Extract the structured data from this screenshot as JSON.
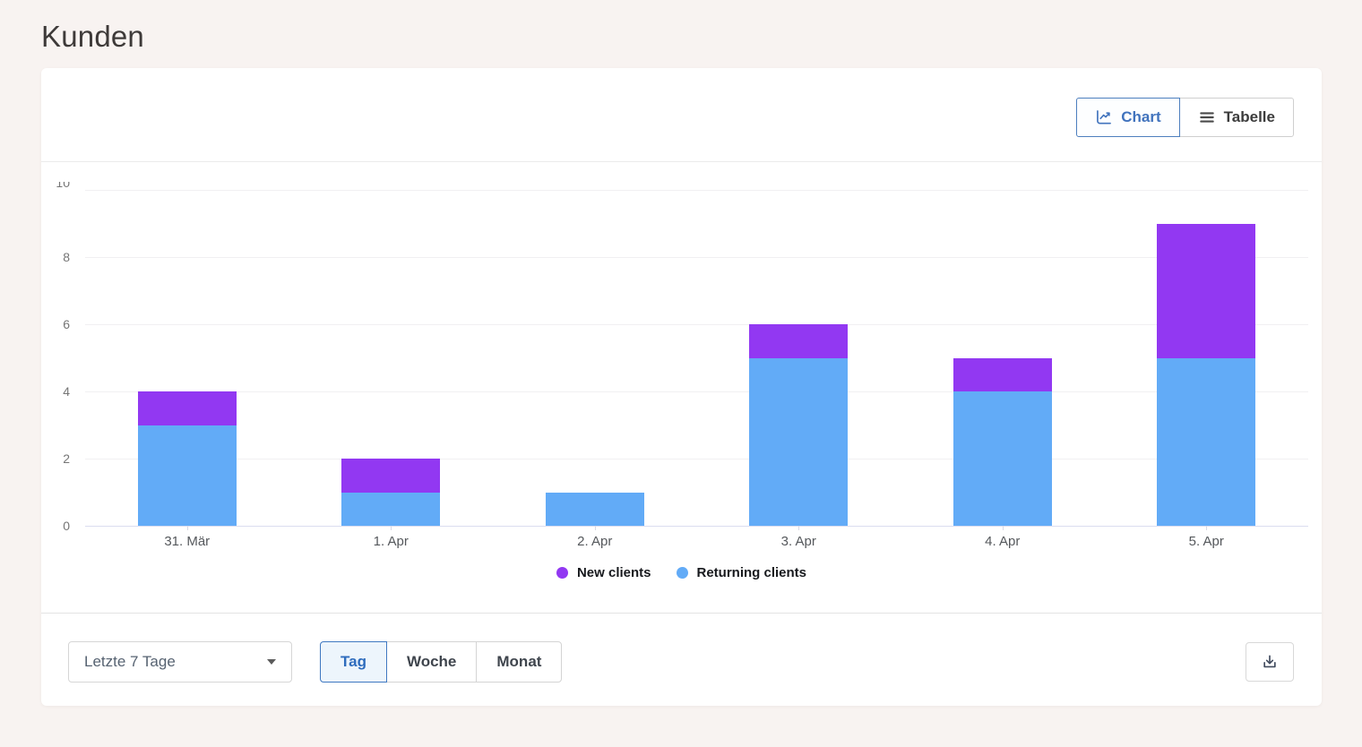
{
  "page": {
    "title": "Kunden",
    "background": "#f8f3f1"
  },
  "header": {
    "view_toggle": [
      {
        "label": "Chart",
        "icon": "chart-line-icon",
        "active": true
      },
      {
        "label": "Tabelle",
        "icon": "table-rows-icon",
        "active": false
      }
    ]
  },
  "chart_data": {
    "type": "bar",
    "stacked": true,
    "categories": [
      "31. Mär",
      "1. Apr",
      "2. Apr",
      "3. Apr",
      "4. Apr",
      "5. Apr"
    ],
    "series": [
      {
        "name": "New clients",
        "color": "#9238f2",
        "values": [
          1,
          1,
          0,
          1,
          1,
          4
        ]
      },
      {
        "name": "Returning clients",
        "color": "#62abf7",
        "values": [
          3,
          1,
          1,
          5,
          4,
          5
        ]
      }
    ],
    "totals": [
      4,
      2,
      1,
      6,
      5,
      9
    ],
    "ylim": [
      0,
      10
    ],
    "yticks": [
      0,
      2,
      4,
      6,
      8,
      10
    ],
    "grid": true,
    "legend_position": "bottom"
  },
  "footer": {
    "range_select": {
      "value": "Letzte 7 Tage",
      "icon": "chevron-down-icon"
    },
    "granularity": [
      {
        "label": "Tag",
        "active": true
      },
      {
        "label": "Woche",
        "active": false
      },
      {
        "label": "Monat",
        "active": false
      }
    ],
    "download": {
      "icon": "download-icon"
    }
  },
  "colors": {
    "accent_blue": "#4173bd",
    "active_tab_background": "#edf5fc",
    "new_clients": "#9238f2",
    "returning_clients": "#62abf7",
    "page_background": "#f8f3f1",
    "axis_line": "#dbddf0",
    "gridline": "#f1f0f2"
  }
}
